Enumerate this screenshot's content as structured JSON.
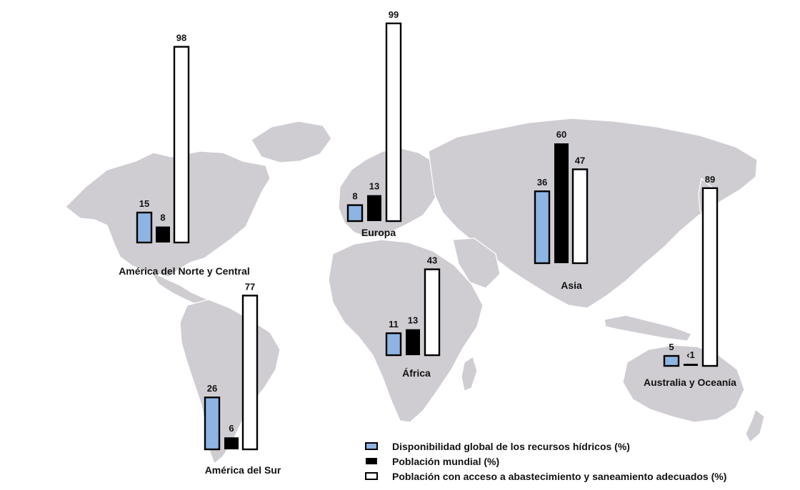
{
  "colors": {
    "water": "#8eb4e3",
    "population": "#000000",
    "sanitation": "#ffffff",
    "bar_stroke": "#000000",
    "land": "#cfcdd2"
  },
  "chart_data": {
    "type": "bar",
    "title": "",
    "categories": [
      "América del Norte y Central",
      "Europa",
      "Asia",
      "África",
      "América del Sur",
      "Australia y Oceanía"
    ],
    "series": [
      {
        "name": "Disponibilidad global de los recursos hídricos (%)",
        "values": [
          15,
          8,
          36,
          11,
          26,
          5
        ],
        "labels": [
          "15",
          "8",
          "36",
          "11",
          "26",
          "5"
        ]
      },
      {
        "name": "Población mundial (%)",
        "values": [
          8,
          13,
          60,
          13,
          6,
          0.5
        ],
        "labels": [
          "8",
          "13",
          "60",
          "13",
          "6",
          "‹1"
        ]
      },
      {
        "name": "Población con acceso a abastecimiento y saneamiento adecuados (%)",
        "values": [
          98,
          99,
          47,
          43,
          77,
          89
        ],
        "labels": [
          "98",
          "99",
          "47",
          "43",
          "77",
          "89"
        ]
      }
    ],
    "background": "world-map",
    "grid": false,
    "legend_position": "bottom-right"
  }
}
